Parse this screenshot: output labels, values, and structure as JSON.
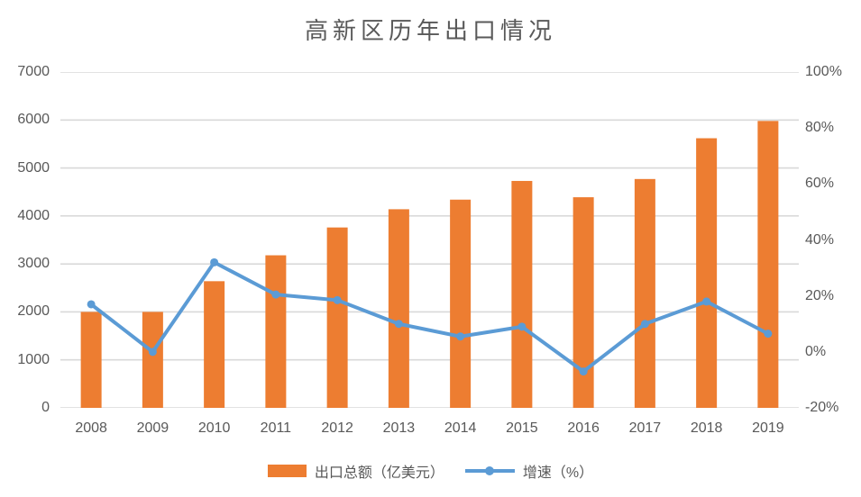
{
  "title": "高新区历年出口情况",
  "colors": {
    "bar": "#ED7D31",
    "line": "#5B9BD5",
    "grid": "#D9D9D9",
    "text": "#595959",
    "background": "#FFFFFF"
  },
  "chart_data": {
    "type": "combo-bar-line",
    "title": "高新区历年出口情况",
    "categories": [
      "2008",
      "2009",
      "2010",
      "2011",
      "2012",
      "2013",
      "2014",
      "2015",
      "2016",
      "2017",
      "2018",
      "2019"
    ],
    "series": [
      {
        "name": "出口总额（亿美元）",
        "type": "bar",
        "axis": "left",
        "color": "#ED7D31",
        "values": [
          2000,
          2000,
          2640,
          3180,
          3760,
          4140,
          4340,
          4730,
          4390,
          4770,
          5620,
          5980
        ]
      },
      {
        "name": "增速（%）",
        "type": "line",
        "axis": "right",
        "color": "#5B9BD5",
        "values": [
          17,
          0,
          32,
          20.5,
          18.5,
          10,
          5.5,
          9,
          -7,
          10,
          18,
          6.5
        ]
      }
    ],
    "left_axis": {
      "min": 0,
      "max": 7000,
      "step": 1000,
      "tick_labels": [
        "7000",
        "6000",
        "5000",
        "4000",
        "3000",
        "2000",
        "1000",
        "0"
      ]
    },
    "right_axis": {
      "min": -20,
      "max": 100,
      "step": 20,
      "tick_labels": [
        "100%",
        "80%",
        "60%",
        "40%",
        "20%",
        "0%",
        "-20%"
      ]
    },
    "grid": true,
    "legend_position": "bottom"
  }
}
